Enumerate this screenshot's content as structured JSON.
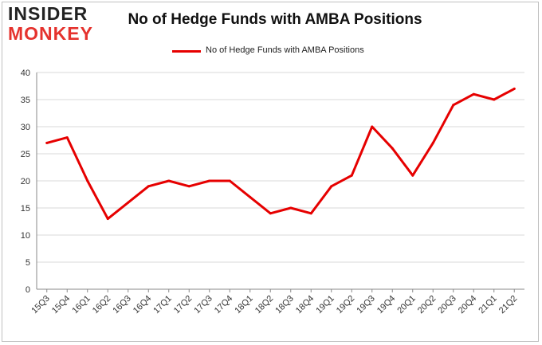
{
  "logo": {
    "line1": "INSIDER",
    "line2": "MONKEY"
  },
  "chart_data": {
    "type": "line",
    "title": "No of Hedge Funds with AMBA Positions",
    "xlabel": "",
    "ylabel": "",
    "categories": [
      "15Q3",
      "15Q4",
      "16Q1",
      "16Q2",
      "16Q3",
      "16Q4",
      "17Q1",
      "17Q2",
      "17Q3",
      "17Q4",
      "18Q1",
      "18Q2",
      "18Q3",
      "18Q4",
      "19Q1",
      "19Q2",
      "19Q3",
      "19Q4",
      "20Q1",
      "20Q2",
      "20Q3",
      "20Q4",
      "21Q1",
      "21Q2"
    ],
    "series": [
      {
        "name": "No of Hedge Funds with AMBA Positions",
        "values": [
          27,
          28,
          20,
          13,
          16,
          19,
          20,
          19,
          20,
          20,
          17,
          14,
          15,
          14,
          19,
          21,
          30,
          26,
          21,
          27,
          34,
          36,
          35,
          37
        ],
        "color": "#e60000"
      }
    ],
    "ylim": [
      0,
      40
    ],
    "yticks": [
      0,
      5,
      10,
      15,
      20,
      25,
      30,
      35,
      40
    ],
    "grid": true,
    "legend_position": "top-center"
  }
}
